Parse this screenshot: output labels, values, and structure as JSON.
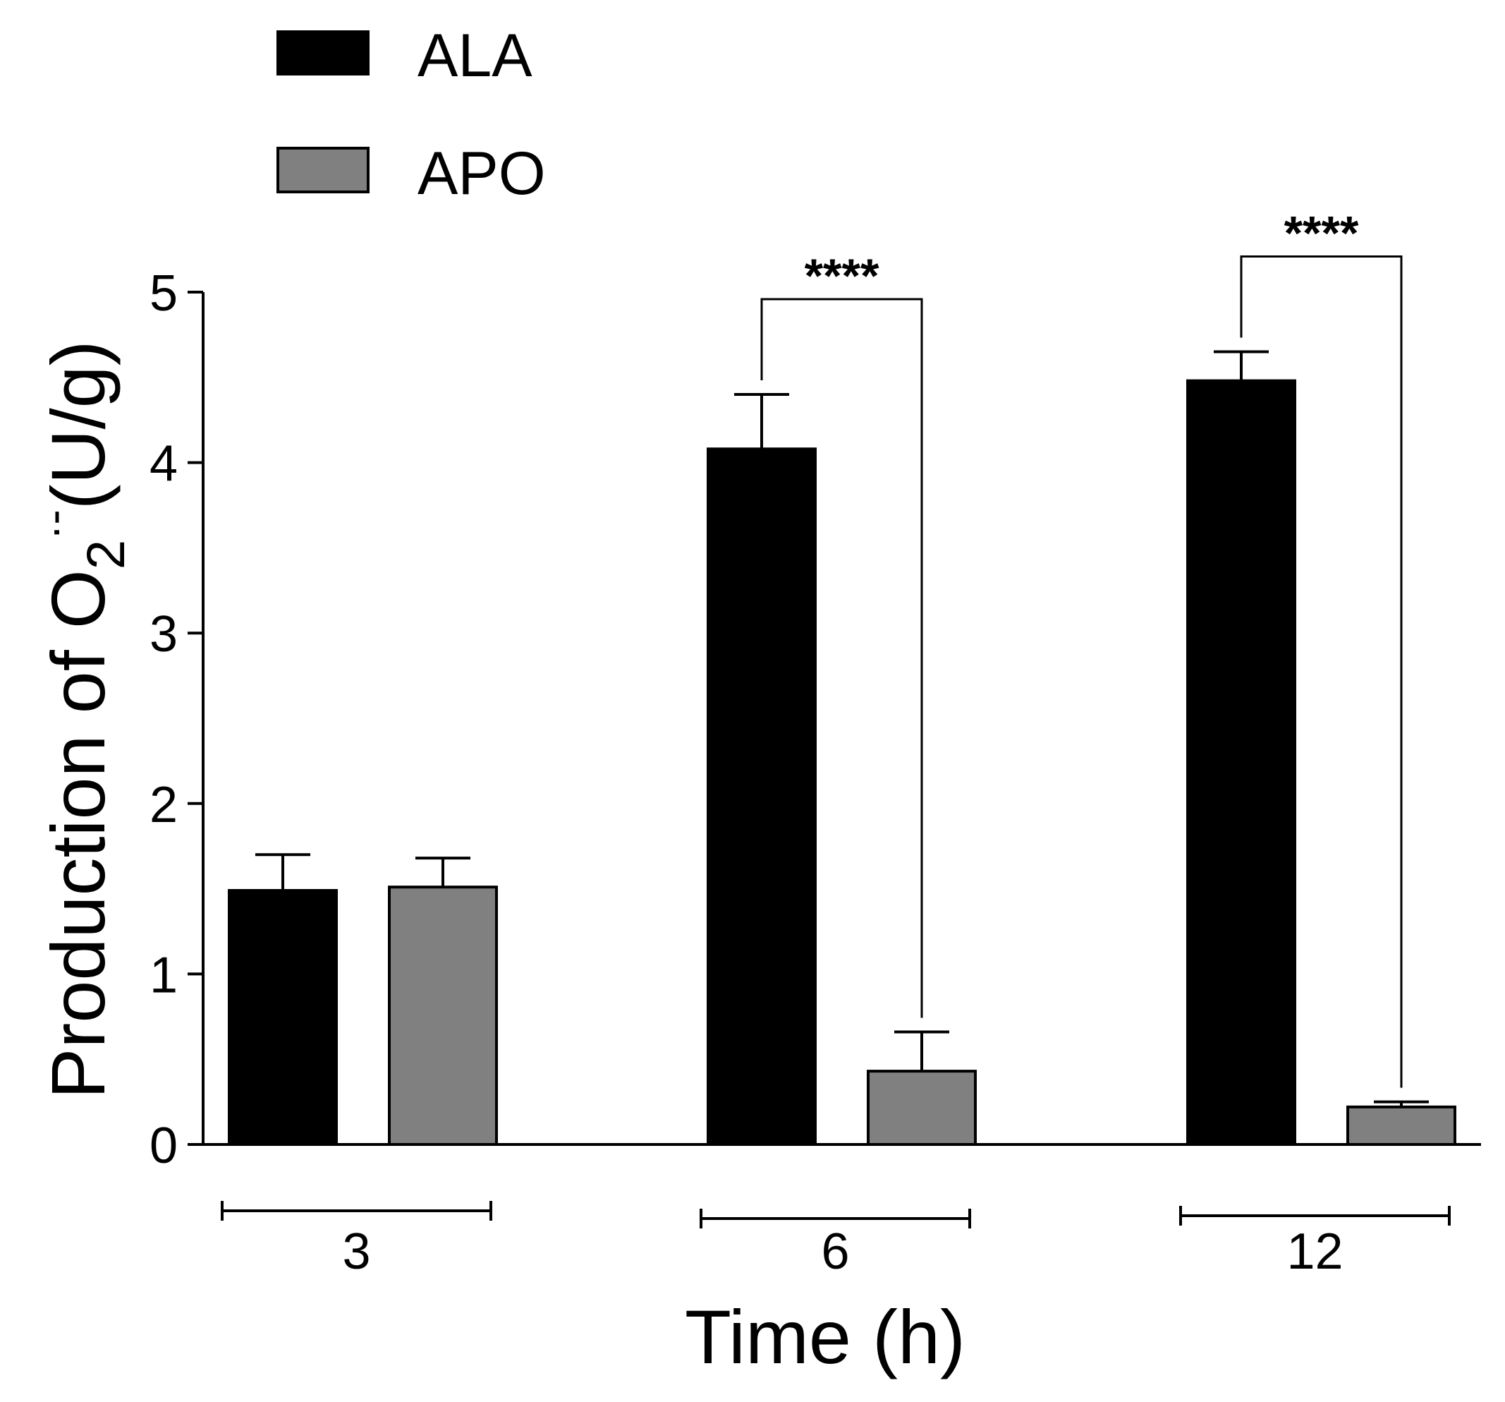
{
  "chart_data": {
    "type": "bar",
    "title": "",
    "xlabel": "Time (h)",
    "ylabel": {
      "main": "Production of O",
      "sub": "2",
      "sup": "·-",
      "unit": "(U/g)"
    },
    "ylim": [
      0,
      5
    ],
    "yticks": [
      "0",
      "1",
      "2",
      "3",
      "4",
      "5"
    ],
    "categories": [
      "3",
      "6",
      "12"
    ],
    "legend": {
      "position": "top-left"
    },
    "series": [
      {
        "name": "ALA",
        "color": "#000000",
        "values": [
          1.49,
          4.08,
          4.48
        ],
        "errors": [
          0.21,
          0.32,
          0.17
        ]
      },
      {
        "name": "APO",
        "color": "#808080",
        "values": [
          1.51,
          0.43,
          0.22
        ],
        "errors": [
          0.17,
          0.23,
          0.03
        ]
      }
    ],
    "significance": [
      {
        "category": "6",
        "label": "****"
      },
      {
        "category": "12",
        "label": "****"
      }
    ]
  }
}
